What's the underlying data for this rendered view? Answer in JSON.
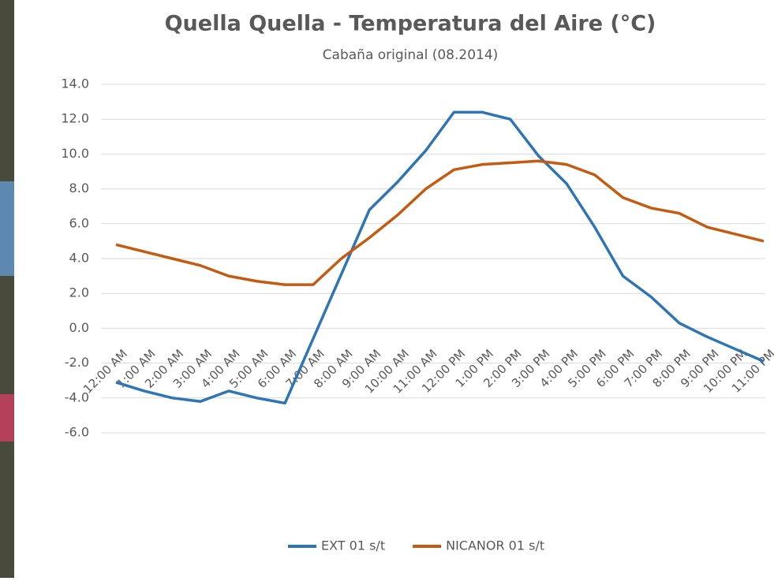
{
  "chart_data": {
    "type": "line",
    "title": "Quella Quella - Temperatura del Aire (°C)",
    "subtitle": "Cabaña original (08.2014)",
    "categories": [
      "12:00 AM",
      "1:00 AM",
      "2:00 AM",
      "3:00 AM",
      "4:00 AM",
      "5:00 AM",
      "6:00 AM",
      "7:00 AM",
      "8:00 AM",
      "9:00 AM",
      "10:00 AM",
      "11:00 AM",
      "12:00 PM",
      "1:00 PM",
      "2:00 PM",
      "3:00 PM",
      "4:00 PM",
      "5:00 PM",
      "6:00 PM",
      "7:00 PM",
      "8:00 PM",
      "9:00 PM",
      "10:00 PM",
      "11:00 PM"
    ],
    "series": [
      {
        "name": "EXT 01 s/t",
        "color": "#2e75b6",
        "values": [
          -3.1,
          -3.6,
          -4.0,
          -4.2,
          -3.6,
          -4.0,
          -4.3,
          -0.6,
          3.1,
          6.8,
          8.4,
          10.2,
          12.4,
          12.4,
          12.0,
          9.9,
          8.3,
          5.8,
          3.0,
          1.8,
          0.3,
          -0.5,
          -1.2,
          -1.9
        ]
      },
      {
        "name": "NICANOR 01 s/t",
        "color": "#c55a11",
        "values": [
          4.8,
          4.4,
          4.0,
          3.6,
          3.0,
          2.7,
          2.5,
          2.5,
          4.0,
          5.2,
          6.5,
          8.0,
          9.1,
          9.4,
          9.5,
          9.6,
          9.4,
          8.8,
          7.5,
          6.9,
          6.6,
          5.8,
          5.4,
          5.0
        ]
      }
    ],
    "ylim": [
      -6,
      14
    ],
    "yticks": [
      {
        "value": -6,
        "label": "-6.0"
      },
      {
        "value": -4,
        "label": "-4.0"
      },
      {
        "value": -2,
        "label": "-2.0"
      },
      {
        "value": 0,
        "label": "0.0"
      },
      {
        "value": 2,
        "label": "2.0"
      },
      {
        "value": 4,
        "label": "4.0"
      },
      {
        "value": 6,
        "label": "6.0"
      },
      {
        "value": 8,
        "label": "8.0"
      },
      {
        "value": 10,
        "label": "10.0"
      },
      {
        "value": 12,
        "label": "12.0"
      },
      {
        "value": 14,
        "label": "14.0"
      }
    ],
    "grid": true,
    "legend": "bottom"
  }
}
